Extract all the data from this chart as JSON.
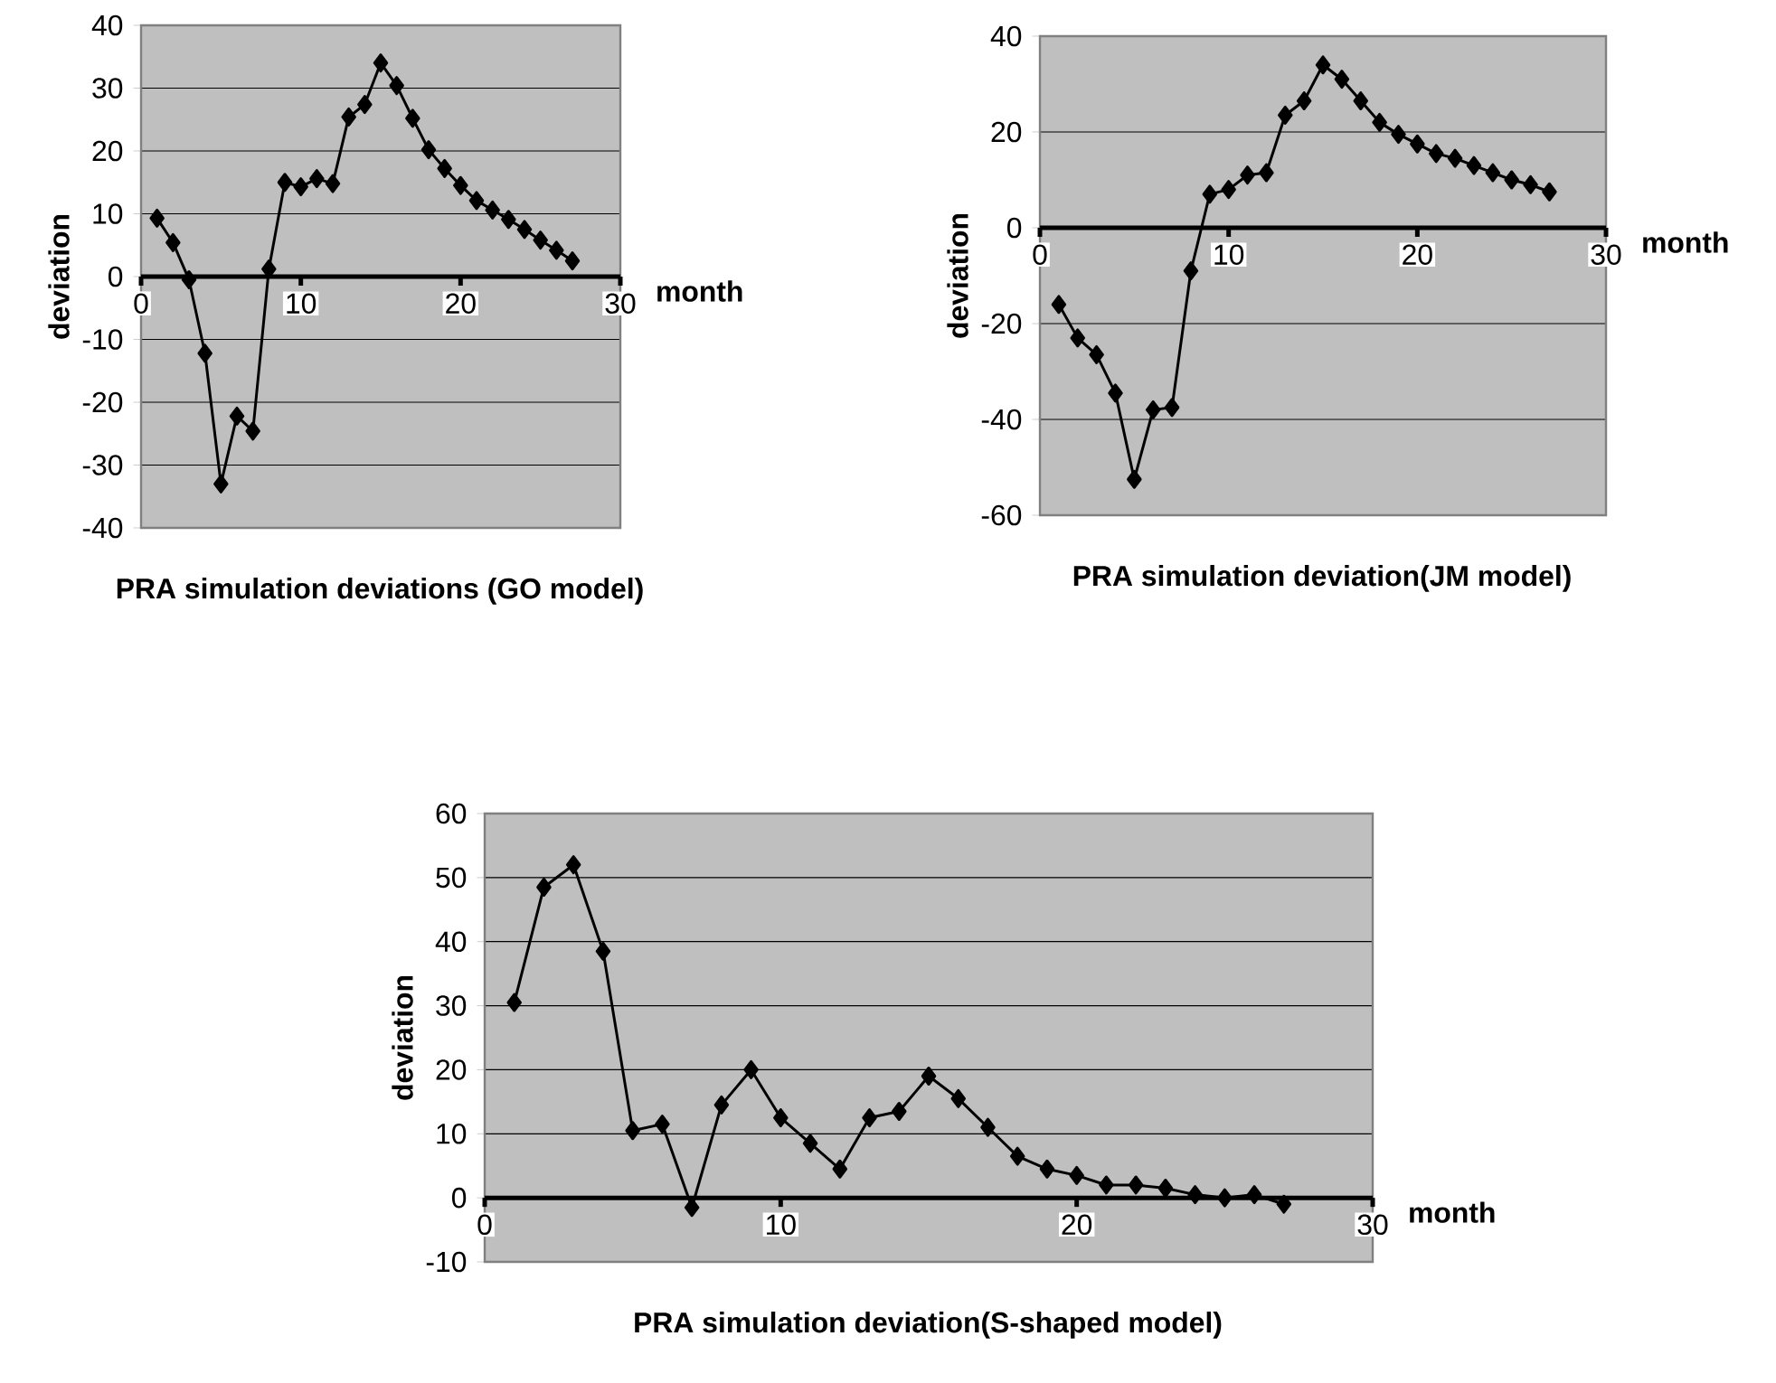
{
  "chart_data": [
    {
      "type": "line",
      "title": "PRA simulation deviations (GO model)",
      "xlabel": "month",
      "ylabel": "deviation",
      "x": [
        1,
        2,
        3,
        4,
        5,
        6,
        7,
        8,
        9,
        10,
        11,
        12,
        13,
        14,
        15,
        16,
        17,
        18,
        19,
        20,
        21,
        22,
        23,
        24,
        25,
        26,
        27
      ],
      "series": [
        {
          "color": "#000000",
          "values": [
            9.3,
            5.4,
            -0.5,
            -12.2,
            -33,
            -22.2,
            -24.6,
            1.2,
            15,
            14.3,
            15.6,
            14.8,
            25.4,
            27.4,
            34,
            30.4,
            25.2,
            20.2,
            17.2,
            14.5,
            12.1,
            10.6,
            9.1,
            7.5,
            5.8,
            4.2,
            2.5
          ]
        }
      ],
      "xlim": [
        0,
        30
      ],
      "xticks": [
        0,
        10,
        20,
        30
      ],
      "ylim": [
        -40,
        40
      ],
      "yticks": [
        -40,
        -30,
        -20,
        -10,
        0,
        10,
        20,
        30,
        40
      ],
      "grid": "y",
      "marker": "diamond"
    },
    {
      "type": "line",
      "title": "PRA simulation deviation(JM model)",
      "xlabel": "month",
      "ylabel": "deviation",
      "x": [
        1,
        2,
        3,
        4,
        5,
        6,
        7,
        8,
        9,
        10,
        11,
        12,
        13,
        14,
        15,
        16,
        17,
        18,
        19,
        20,
        21,
        22,
        23,
        24,
        25,
        26,
        27
      ],
      "series": [
        {
          "color": "#000000",
          "values": [
            -16,
            -23,
            -26.5,
            -34.5,
            -52.5,
            -38,
            -37.5,
            -9,
            7,
            8,
            11,
            11.5,
            23.5,
            26.5,
            34,
            31,
            26.5,
            22,
            19.5,
            17.5,
            15.5,
            14.5,
            13,
            11.5,
            10,
            9,
            7.5
          ]
        }
      ],
      "xlim": [
        0,
        30
      ],
      "xticks": [
        0,
        10,
        20,
        30
      ],
      "ylim": [
        -60,
        40
      ],
      "yticks": [
        -60,
        -40,
        -20,
        0,
        20,
        40
      ],
      "grid": "y",
      "marker": "diamond"
    },
    {
      "type": "line",
      "title": "PRA simulation deviation(S-shaped model)",
      "xlabel": "month",
      "ylabel": "deviation",
      "x": [
        1,
        2,
        3,
        4,
        5,
        6,
        7,
        8,
        9,
        10,
        11,
        12,
        13,
        14,
        15,
        16,
        17,
        18,
        19,
        20,
        21,
        22,
        23,
        24,
        25,
        26,
        27
      ],
      "series": [
        {
          "color": "#000000",
          "values": [
            30.5,
            48.5,
            52,
            38.5,
            10.5,
            11.5,
            -1.5,
            14.5,
            20,
            12.5,
            8.5,
            4.5,
            12.5,
            13.5,
            19,
            15.5,
            11,
            6.5,
            4.5,
            3.5,
            2,
            2,
            1.5,
            0.5,
            0,
            0.5,
            -1
          ]
        }
      ],
      "xlim": [
        0,
        30
      ],
      "xticks": [
        0,
        10,
        20,
        30
      ],
      "ylim": [
        -10,
        60
      ],
      "yticks": [
        -10,
        0,
        10,
        20,
        30,
        40,
        50,
        60
      ],
      "grid": "y",
      "marker": "diamond"
    }
  ]
}
